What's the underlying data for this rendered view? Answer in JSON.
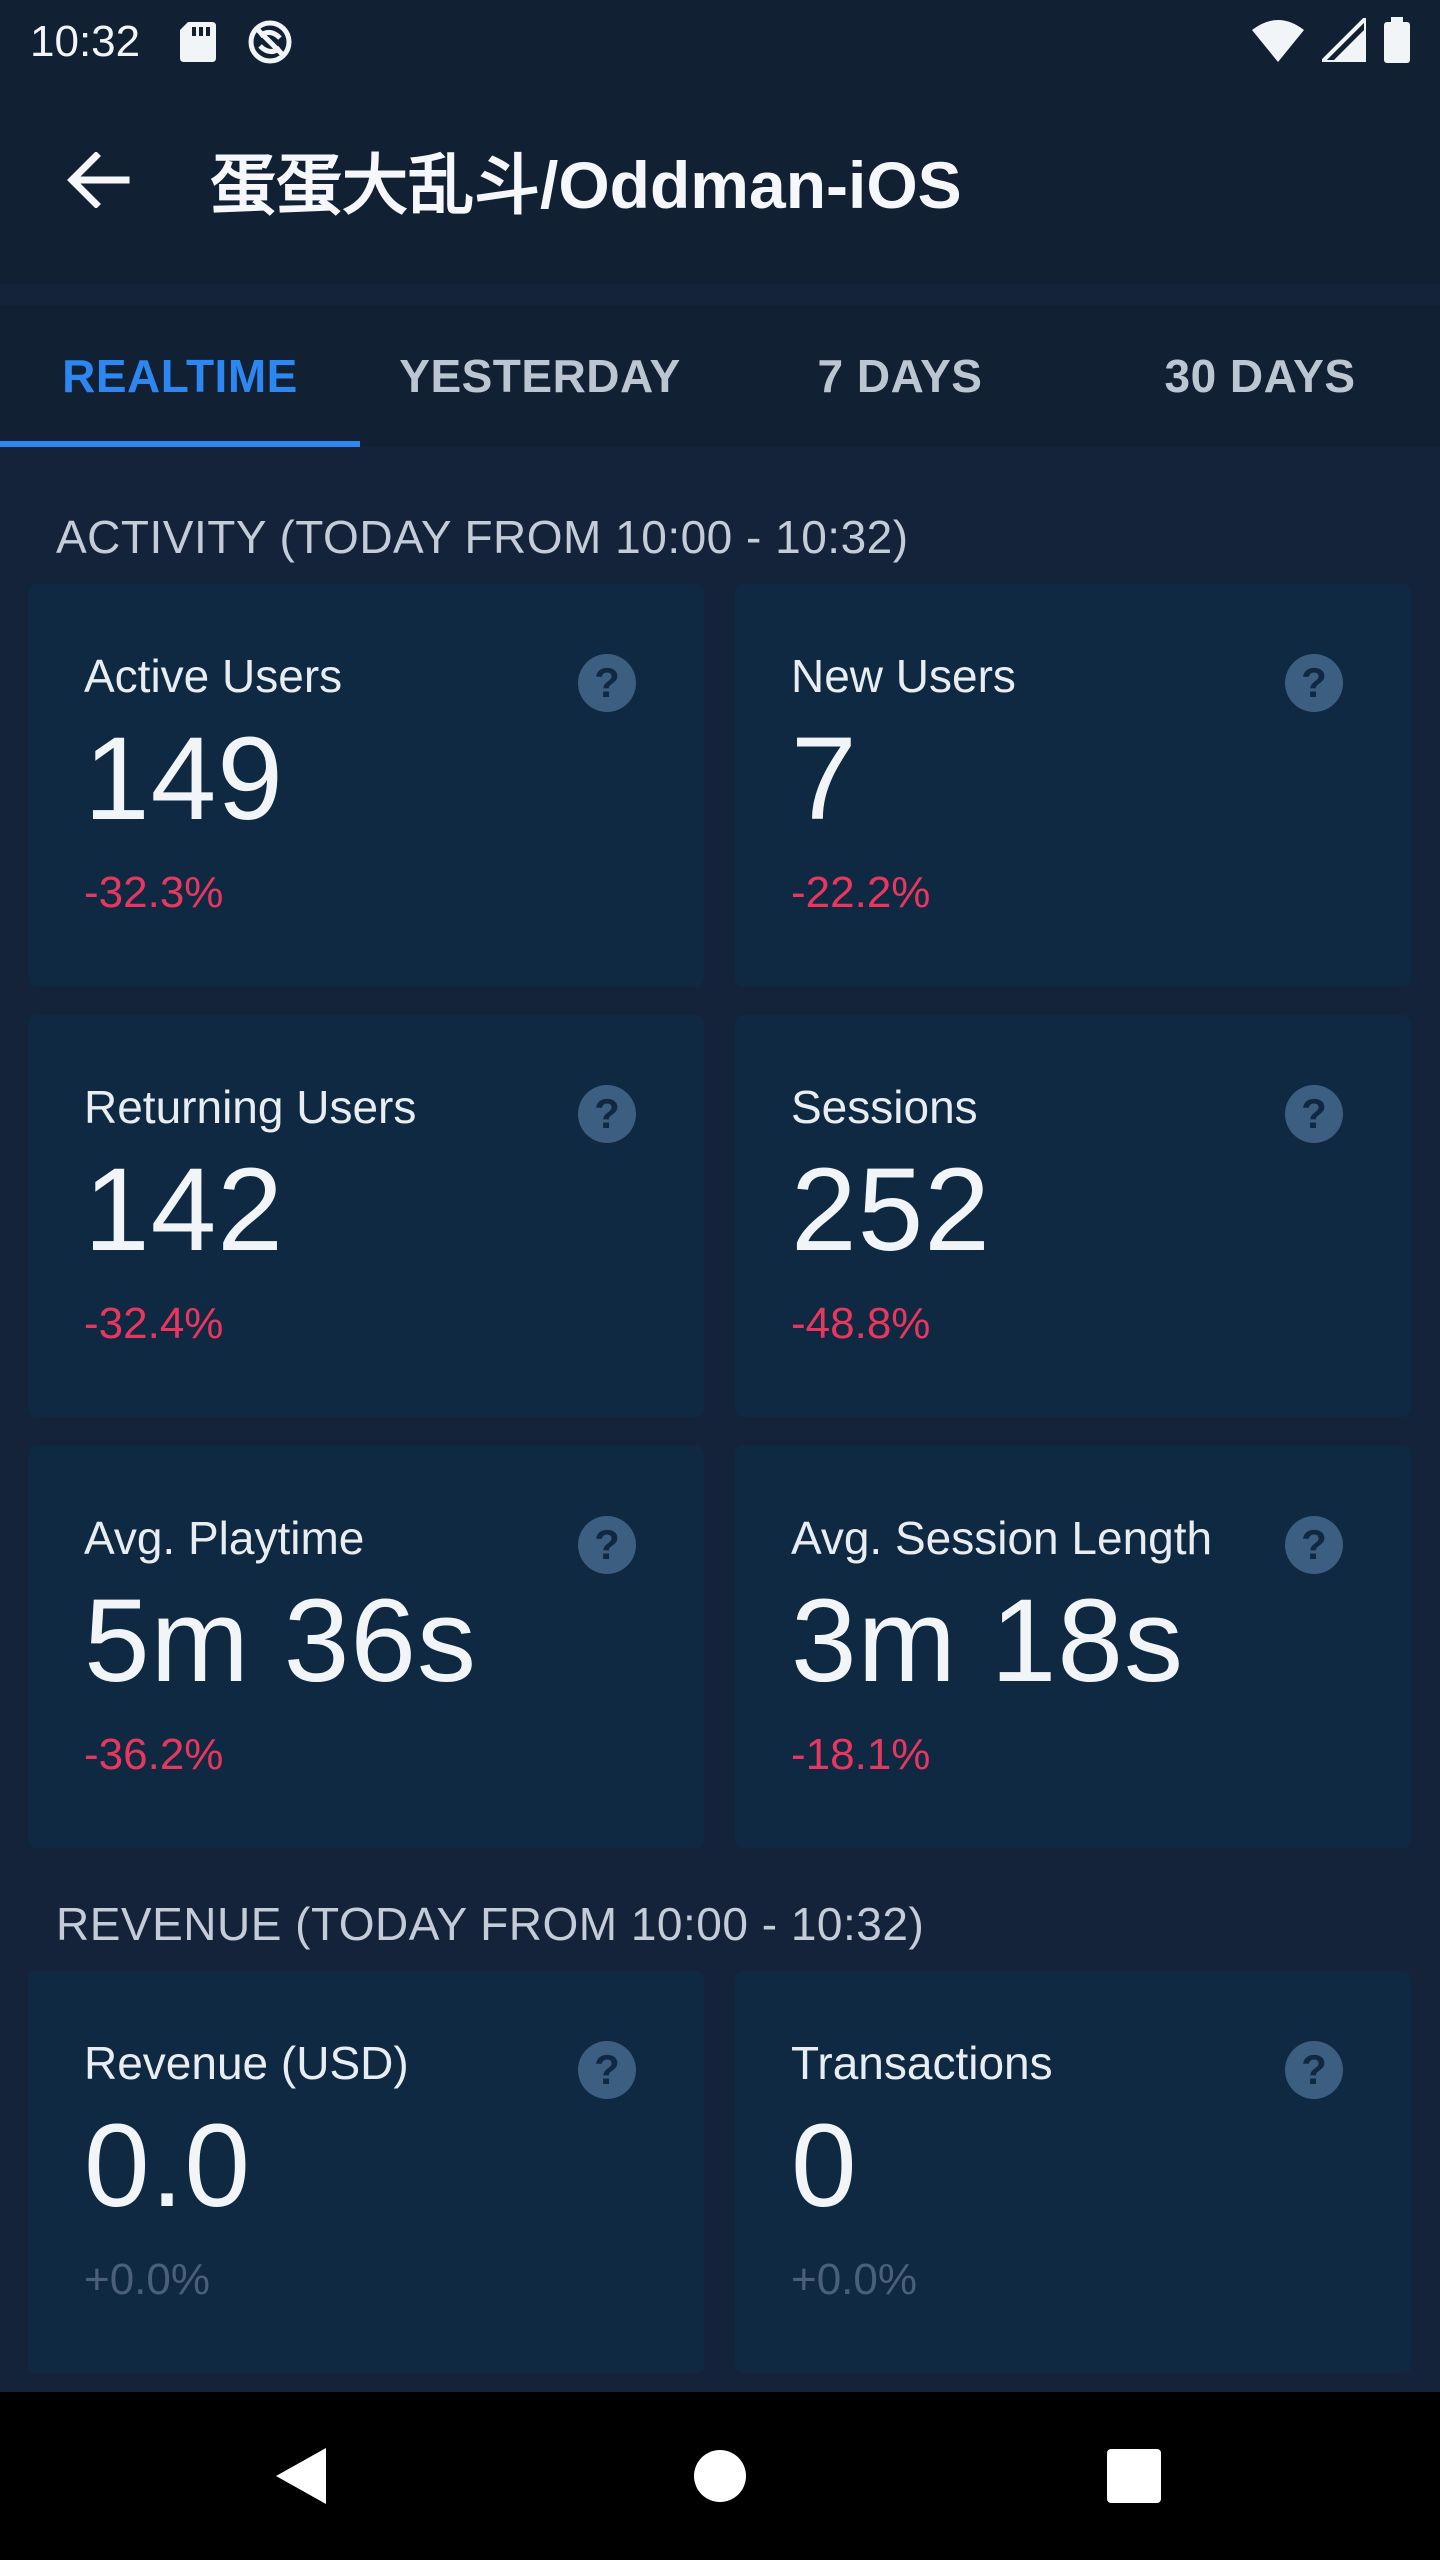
{
  "status_bar": {
    "time": "10:32",
    "icons_left": [
      "sd-card-icon",
      "sync-icon"
    ],
    "icons_right": [
      "wifi-icon",
      "signal-icon",
      "battery-icon"
    ]
  },
  "header": {
    "title": "蛋蛋大乱斗/Oddman-iOS",
    "back_icon": "arrow-left-icon"
  },
  "tabs": [
    {
      "label": "REALTIME",
      "active": true
    },
    {
      "label": "YESTERDAY",
      "active": false
    },
    {
      "label": "7 DAYS",
      "active": false
    },
    {
      "label": "30 DAYS",
      "active": false
    }
  ],
  "activity": {
    "section_label": "ACTIVITY (TODAY FROM 10:00 - 10:32)",
    "cards": [
      {
        "title": "Active Users",
        "value": "149",
        "delta": "-32.3%"
      },
      {
        "title": "New Users",
        "value": "7",
        "delta": "-22.2%"
      },
      {
        "title": "Returning Users",
        "value": "142",
        "delta": "-32.4%"
      },
      {
        "title": "Sessions",
        "value": "252",
        "delta": "-48.8%"
      },
      {
        "title": "Avg. Playtime",
        "value": "5m 36s",
        "delta": "-36.2%"
      },
      {
        "title": "Avg. Session Length",
        "value": "3m 18s",
        "delta": "-18.1%"
      }
    ]
  },
  "revenue": {
    "section_label": "REVENUE (TODAY FROM 10:00 - 10:32)",
    "cards": [
      {
        "title": "Revenue (USD)",
        "value": "0.0",
        "delta": "+0.0%"
      },
      {
        "title": "Transactions",
        "value": "0",
        "delta": "+0.0%"
      }
    ]
  },
  "help_glyph": "?",
  "colors": {
    "background": "#15233a",
    "card": "#0f2942",
    "accent": "#2e86f0",
    "negative": "#e8375f",
    "neutral_delta": "#4a6078"
  },
  "nav_bar": {
    "icons": [
      "back-triangle-icon",
      "home-circle-icon",
      "recents-square-icon"
    ]
  }
}
